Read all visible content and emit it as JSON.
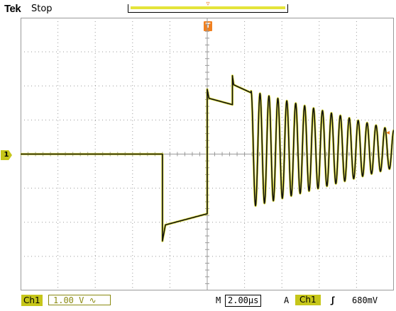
{
  "header": {
    "brand": "Tek",
    "acquisition_state": "Stop"
  },
  "markers": {
    "trigger_position": "T",
    "trigger_arrow": "▿",
    "ch1_ground": "1",
    "trigger_level_arrow": "◂"
  },
  "footer": {
    "channel": "Ch1",
    "volts_per_div": "1.00 V",
    "coupling": "∿",
    "timebase_prefix": "M",
    "time_per_div": "2.00µs",
    "trigger_mode": "A",
    "trigger_source": "Ch1",
    "trigger_slope": "ʃ",
    "trigger_level": "680mV"
  },
  "colors": {
    "grid": "#9a9a9a",
    "trace": "#111111",
    "trace_glow": "#e0e030",
    "channel_accent": "#c6c61a",
    "trigger_accent": "#f08020"
  },
  "chart_data": {
    "type": "line",
    "xlim": [
      -10,
      10
    ],
    "ylim": [
      -4,
      4
    ],
    "x_unit": "µs",
    "y_unit": "V",
    "grid": true,
    "segments": [
      {
        "x": [
          -10,
          -2.4
        ],
        "y": [
          0.0,
          0.0
        ]
      },
      {
        "x": [
          -2.4,
          0.0
        ],
        "y": [
          -2.1,
          -1.75
        ]
      },
      {
        "x": [
          0.0,
          1.35
        ],
        "y": [
          1.65,
          1.45
        ]
      },
      {
        "x": [
          1.35,
          2.35
        ],
        "y": [
          2.05,
          1.8
        ]
      }
    ],
    "ringing": {
      "x_start": 2.35,
      "x_end": 10.0,
      "center": 0.15,
      "amplitude_start": 1.7,
      "amplitude_end": 0.55,
      "cycles": 16
    }
  }
}
